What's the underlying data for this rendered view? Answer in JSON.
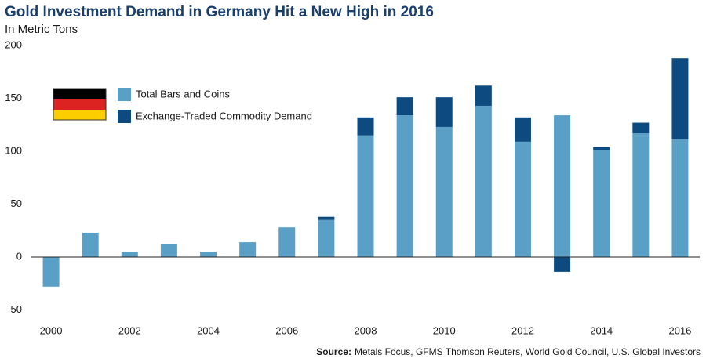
{
  "chart_data": {
    "type": "stacked-bar",
    "title": "Gold Investment Demand in Germany Hit a New High in 2016",
    "subtitle": "In Metric Tons",
    "source_label": "Source:",
    "source": "Metals Focus, GFMS Thomson Reuters, World Gold Council, U.S. Global Investors",
    "categories": [
      "2000",
      null,
      "2002",
      null,
      "2004",
      null,
      "2006",
      null,
      "2008",
      null,
      "2010",
      null,
      "2012",
      null,
      "2014",
      null,
      "2016"
    ],
    "series": [
      {
        "name": "Total Bars and Coins",
        "color": "#5a9fc5",
        "values": [
          -28,
          23,
          5,
          12,
          5,
          14,
          28,
          35,
          115,
          134,
          123,
          143,
          109,
          134,
          101,
          117,
          111
        ]
      },
      {
        "name": "Exchange-Traded Commodity Demand",
        "color": "#0d4a80",
        "values": [
          null,
          null,
          null,
          null,
          null,
          null,
          null,
          3,
          17,
          17,
          28,
          19,
          23,
          -14,
          3,
          10,
          77
        ]
      }
    ],
    "ylim": [
      -50,
      200
    ],
    "yticks": [
      -50,
      0,
      50,
      100,
      150,
      200
    ],
    "legend": "upper-left"
  }
}
